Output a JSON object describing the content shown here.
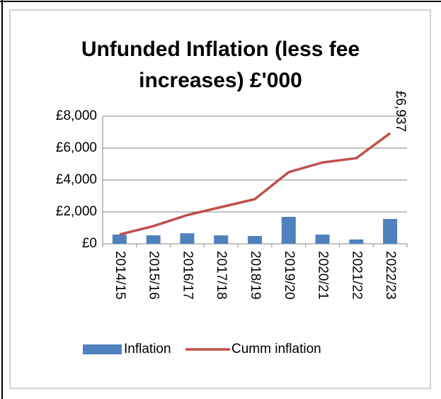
{
  "chart_data": {
    "type": "bar_line",
    "title": "Unfunded Inflation (less fee increases) £'000",
    "categories": [
      "2014/15",
      "2015/16",
      "2016/17",
      "2017/18",
      "2018/19",
      "2019/20",
      "2020/21",
      "2021/22",
      "2022/23"
    ],
    "series": [
      {
        "name": "Inflation",
        "type": "bar",
        "color": "#4f81bd",
        "values": [
          580,
          530,
          660,
          530,
          490,
          1690,
          580,
          270,
          1560
        ]
      },
      {
        "name": "Cumm inflation",
        "type": "line",
        "color": "#c0504d",
        "values": [
          580,
          1110,
          1800,
          2300,
          2800,
          4490,
          5100,
          5370,
          6937
        ],
        "value_labels": [
          null,
          null,
          null,
          null,
          null,
          null,
          null,
          null,
          "£6,937"
        ]
      }
    ],
    "ylim": [
      0,
      8000
    ],
    "yticks": [
      {
        "value": 0,
        "label": "£0"
      },
      {
        "value": 2000,
        "label": "£2,000"
      },
      {
        "value": 4000,
        "label": "£4,000"
      },
      {
        "value": 6000,
        "label": "£6,000"
      },
      {
        "value": 8000,
        "label": "£8,000"
      }
    ],
    "grid": true,
    "legend": "bottom"
  }
}
